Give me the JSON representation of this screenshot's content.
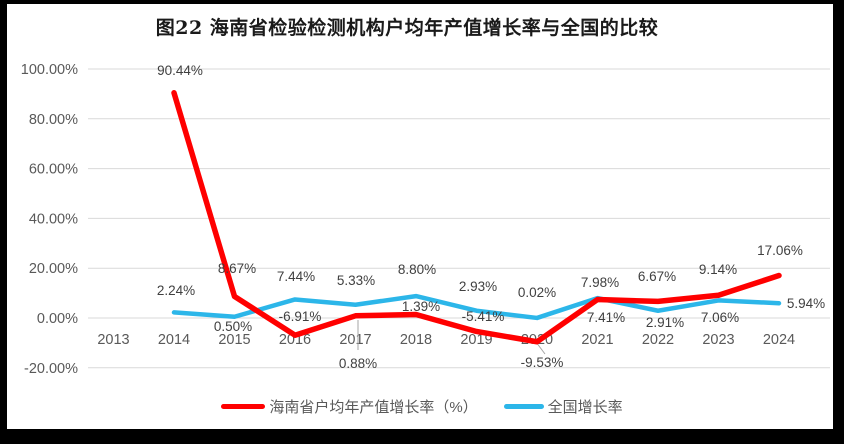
{
  "page": {
    "title": "图22  海南省检验检测机构户均年产值增长率与全国的比较"
  },
  "colors": {
    "frame": "#000000",
    "page_bg": "#ffffff",
    "grid": "#d9d9d9",
    "axis_text": "#595959",
    "label_text": "#404040",
    "leader": "#a6a6a6",
    "hainan_red": "#ff0000",
    "national_blue": "#2cb6e9"
  },
  "legend": {
    "items": [
      {
        "label": "海南省户均年产值增长率（%）",
        "color": "#ff0000"
      },
      {
        "label": "全国增长率",
        "color": "#2cb6e9"
      }
    ]
  },
  "chart_data": {
    "type": "line",
    "title": "图22  海南省检验检测机构户均年产值增长率与全国的比较",
    "categories": [
      "2013",
      "2014",
      "2015",
      "2016",
      "2017",
      "2018",
      "2019",
      "2020",
      "2021",
      "2022",
      "2023",
      "2024"
    ],
    "series": [
      {
        "name": "海南省户均年产值增长率（%）",
        "color": "#ff0000",
        "values": [
          null,
          90.44,
          8.67,
          -6.91,
          0.88,
          1.39,
          -5.41,
          -9.53,
          7.41,
          6.67,
          9.14,
          17.06
        ]
      },
      {
        "name": "全国增长率",
        "color": "#2cb6e9",
        "values": [
          null,
          2.24,
          0.5,
          7.44,
          5.33,
          8.8,
          2.93,
          0.02,
          7.98,
          2.91,
          7.06,
          5.94
        ]
      }
    ],
    "xlabel": "",
    "ylabel": "",
    "y_axis": {
      "ticks": [
        100,
        80,
        60,
        40,
        20,
        0,
        -20
      ],
      "tick_labels": [
        "100.00%",
        "80.00%",
        "60.00%",
        "40.00%",
        "20.00%",
        "0.00%",
        "-20.00%"
      ],
      "min": -20,
      "max": 100
    },
    "grid": true,
    "data_labels": true,
    "legend_position": "bottom"
  }
}
